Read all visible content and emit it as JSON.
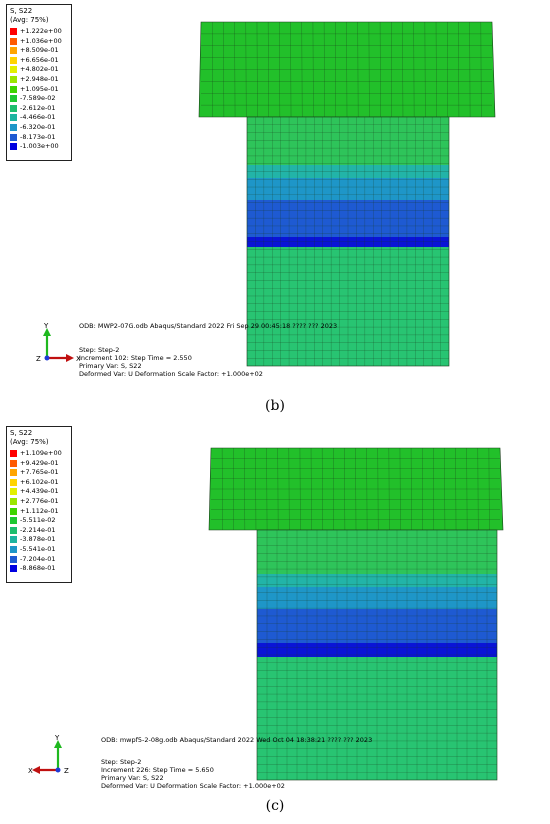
{
  "panels": [
    {
      "id": "b",
      "legend": {
        "title": "S, S22",
        "subtitle": "(Avg: 75%)",
        "entries": [
          {
            "value": "+1.222e+00",
            "color": "#ff0000"
          },
          {
            "value": "+1.036e+00",
            "color": "#ff5a00"
          },
          {
            "value": "+8.509e-01",
            "color": "#ffa500"
          },
          {
            "value": "+6.656e-01",
            "color": "#ffd400"
          },
          {
            "value": "+4.802e-01",
            "color": "#e2f000"
          },
          {
            "value": "+2.948e-01",
            "color": "#9ae600"
          },
          {
            "value": "+1.095e-01",
            "color": "#3ed400"
          },
          {
            "value": "-7.589e-02",
            "color": "#1ec832"
          },
          {
            "value": "-2.612e-01",
            "color": "#1ebe6e"
          },
          {
            "value": "-4.466e-01",
            "color": "#1eb4a0"
          },
          {
            "value": "-6.320e-01",
            "color": "#1e96c8"
          },
          {
            "value": "-8.173e-01",
            "color": "#1e5ad2"
          },
          {
            "value": "-1.003e+00",
            "color": "#0000e0"
          }
        ]
      },
      "odb_line": "ODB: MWP2-07G.odb    Abaqus/Standard 2022    Fri Sep 29 00:45:18 ???? ??? 2023",
      "step_line": "Step: Step-2",
      "increment_line": "Increment    102: Step Time =     2.550",
      "primary_var_line": "Primary Var: S, S22",
      "deformed_var_line": "Deformed Var: U   Deformation Scale Factor: +1.000e+02",
      "caption": "(b)",
      "axis_y": "Y",
      "axis_x": "X",
      "axis_z": "Z"
    },
    {
      "id": "c",
      "legend": {
        "title": "S, S22",
        "subtitle": "(Avg: 75%)",
        "entries": [
          {
            "value": "+1.109e+00",
            "color": "#ff0000"
          },
          {
            "value": "+9.429e-01",
            "color": "#ff5a00"
          },
          {
            "value": "+7.765e-01",
            "color": "#ffa500"
          },
          {
            "value": "+6.102e-01",
            "color": "#ffd400"
          },
          {
            "value": "+4.439e-01",
            "color": "#e2f000"
          },
          {
            "value": "+2.776e-01",
            "color": "#9ae600"
          },
          {
            "value": "+1.112e-01",
            "color": "#3ed400"
          },
          {
            "value": "-5.511e-02",
            "color": "#1ec832"
          },
          {
            "value": "-2.214e-01",
            "color": "#1ebe6e"
          },
          {
            "value": "-3.878e-01",
            "color": "#1eb4a0"
          },
          {
            "value": "-5.541e-01",
            "color": "#1e96c8"
          },
          {
            "value": "-7.204e-01",
            "color": "#1e5ad2"
          },
          {
            "value": "-8.868e-01",
            "color": "#0000e0"
          }
        ]
      },
      "odb_line": "ODB: mwpf5-2-08g.odb    Abaqus/Standard 2022    Wed Oct 04 18:38:21 ???? ??? 2023",
      "step_line": "Step: Step-2",
      "increment_line": "Increment    226: Step Time =     5.650",
      "primary_var_line": "Primary Var: S, S22",
      "deformed_var_line": "Deformed Var: U   Deformation Scale Factor: +1.000e+02",
      "caption": "(c)",
      "axis_y": "Y",
      "axis_x": "X",
      "axis_z": "Z"
    }
  ],
  "colors": {
    "cap_green": "#22c02a",
    "column_green": "#2ec45a",
    "band_cyan": "#22b4a8",
    "band_lightblue": "#1e96c8",
    "band_blue": "#1e5ad2",
    "band_darkblue": "#0a14d6",
    "lower_green": "#28c472",
    "mesh_line": "#1a3a1a"
  }
}
